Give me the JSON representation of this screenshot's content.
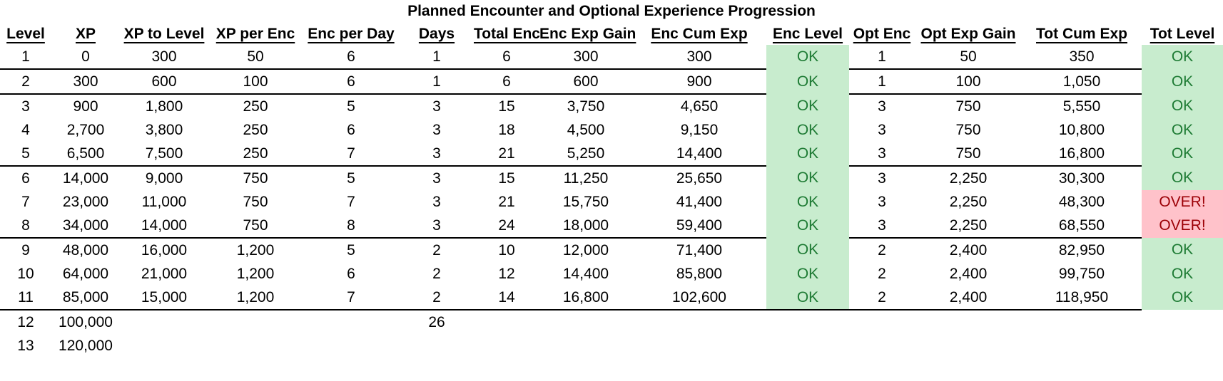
{
  "title": "Planned Encounter and Optional Experience Progression",
  "colors": {
    "ok_bg": "#c8ecce",
    "ok_text": "#1e7b34",
    "over_bg": "#ffc2ca",
    "over_text": "#9c0006"
  },
  "table": {
    "headers": [
      "Level",
      "XP",
      "XP to Level",
      "XP per Enc",
      "Enc per Day",
      "Days",
      "Total Enc",
      "Enc Exp Gain",
      "Enc Cum Exp",
      "Enc Level",
      "Opt Enc",
      "Opt Exp Gain",
      "Tot Cum Exp",
      "Tot Level"
    ],
    "status_column_indexes": [
      9,
      13
    ],
    "status_values": {
      "ok": "OK",
      "over": "OVER!"
    },
    "separator_skip_default": [
      9,
      13
    ],
    "rows": [
      {
        "cells": [
          "1",
          "0",
          "300",
          "50",
          "6",
          "1",
          "6",
          "300",
          "300",
          "OK",
          "1",
          "50",
          "350",
          "OK"
        ],
        "separator_after": true
      },
      {
        "cells": [
          "2",
          "300",
          "600",
          "100",
          "6",
          "1",
          "6",
          "600",
          "900",
          "OK",
          "1",
          "100",
          "1,050",
          "OK"
        ],
        "separator_after": true
      },
      {
        "cells": [
          "3",
          "900",
          "1,800",
          "250",
          "5",
          "3",
          "15",
          "3,750",
          "4,650",
          "OK",
          "3",
          "750",
          "5,550",
          "OK"
        ],
        "separator_after": false
      },
      {
        "cells": [
          "4",
          "2,700",
          "3,800",
          "250",
          "6",
          "3",
          "18",
          "4,500",
          "9,150",
          "OK",
          "3",
          "750",
          "10,800",
          "OK"
        ],
        "separator_after": false
      },
      {
        "cells": [
          "5",
          "6,500",
          "7,500",
          "250",
          "7",
          "3",
          "21",
          "5,250",
          "14,400",
          "OK",
          "3",
          "750",
          "16,800",
          "OK"
        ],
        "separator_after": true
      },
      {
        "cells": [
          "6",
          "14,000",
          "9,000",
          "750",
          "5",
          "3",
          "15",
          "11,250",
          "25,650",
          "OK",
          "3",
          "2,250",
          "30,300",
          "OK"
        ],
        "separator_after": false
      },
      {
        "cells": [
          "7",
          "23,000",
          "11,000",
          "750",
          "7",
          "3",
          "21",
          "15,750",
          "41,400",
          "OK",
          "3",
          "2,250",
          "48,300",
          "OVER!"
        ],
        "separator_after": false
      },
      {
        "cells": [
          "8",
          "34,000",
          "14,000",
          "750",
          "8",
          "3",
          "24",
          "18,000",
          "59,400",
          "OK",
          "3",
          "2,250",
          "68,550",
          "OVER!"
        ],
        "separator_after": true
      },
      {
        "cells": [
          "9",
          "48,000",
          "16,000",
          "1,200",
          "5",
          "2",
          "10",
          "12,000",
          "71,400",
          "OK",
          "2",
          "2,400",
          "82,950",
          "OK"
        ],
        "separator_after": false
      },
      {
        "cells": [
          "10",
          "64,000",
          "21,000",
          "1,200",
          "6",
          "2",
          "12",
          "14,400",
          "85,800",
          "OK",
          "2",
          "2,400",
          "99,750",
          "OK"
        ],
        "separator_after": false
      },
      {
        "cells": [
          "11",
          "85,000",
          "15,000",
          "1,200",
          "7",
          "2",
          "14",
          "16,800",
          "102,600",
          "OK",
          "2",
          "2,400",
          "118,950",
          "OK"
        ],
        "separator_after": true,
        "separator_skip": [
          13
        ]
      },
      {
        "cells": [
          "12",
          "100,000",
          "",
          "",
          "",
          "26",
          "",
          "",
          "",
          "",
          "",
          "",
          "",
          ""
        ],
        "separator_after": false
      },
      {
        "cells": [
          "13",
          "120,000",
          "",
          "",
          "",
          "",
          "",
          "",
          "",
          "",
          "",
          "",
          "",
          ""
        ],
        "separator_after": false
      }
    ]
  }
}
